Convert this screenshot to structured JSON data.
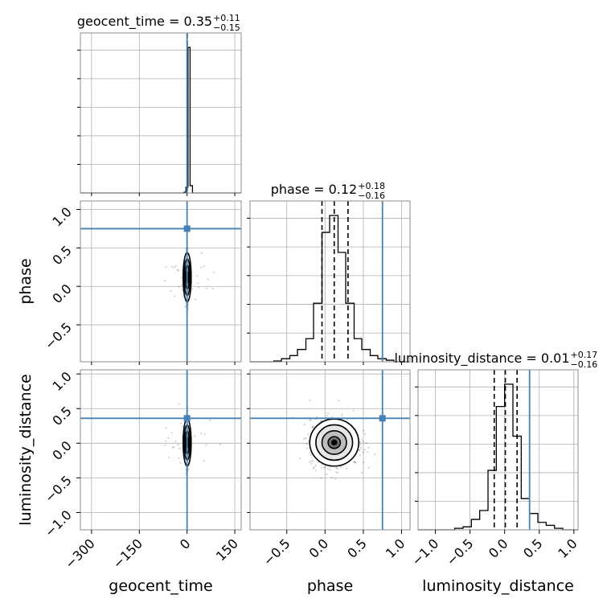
{
  "chart_data": {
    "type": "corner",
    "parameters": [
      "geocent_time",
      "phase",
      "luminosity_distance"
    ],
    "axis_labels": [
      "geocent_time",
      "phase",
      "luminosity_distance"
    ],
    "truth_color": "#4682b4",
    "truths": {
      "geocent_time": 0,
      "phase": 0.75,
      "luminosity_distance": 0.36
    },
    "ranges": {
      "geocent_time": [
        -335,
        170
      ],
      "phase": [
        -0.98,
        1.11
      ],
      "luminosity_distance": [
        -1.25,
        1.06
      ]
    },
    "ticks": {
      "geocent_time": [
        -300,
        -150,
        0,
        150
      ],
      "phase": [
        -0.5,
        0.0,
        0.5,
        1.0
      ],
      "luminosity_distance": [
        -1.0,
        -0.5,
        0.0,
        0.5,
        1.0
      ]
    },
    "tick_labels": {
      "geocent_time": [
        "−300",
        "−150",
        "0",
        "150"
      ],
      "phase": [
        "−0.5",
        "0.0",
        "0.5",
        "1.0"
      ],
      "luminosity_distance": [
        "−1.0",
        "−0.5",
        "0.0",
        "0.5",
        "1.0"
      ]
    },
    "titles": [
      {
        "param": "geocent_time",
        "base": "geocent_time = 0.35",
        "plus": "+0.11",
        "minus": "−0.15"
      },
      {
        "param": "phase",
        "base": "phase = 0.12",
        "plus": "+0.18",
        "minus": "−0.16"
      },
      {
        "param": "luminosity_distance",
        "base": "luminosity_distance = 0.01",
        "plus": "+0.17",
        "minus": "−0.16"
      }
    ],
    "quantiles": {
      "geocent_time": [
        0.2,
        0.35,
        0.46
      ],
      "phase": [
        -0.04,
        0.12,
        0.3
      ],
      "luminosity_distance": [
        -0.15,
        0.01,
        0.18
      ]
    },
    "histograms": {
      "geocent_time": {
        "edges": [
          -335,
          -10,
          -3.5,
          3,
          9.5,
          17,
          170
        ],
        "counts": [
          0,
          0.005,
          0.04,
          1.0,
          0.05,
          0.0
        ]
      },
      "phase": {
        "edges": [
          -0.98,
          -0.67,
          -0.57,
          -0.46,
          -0.36,
          -0.25,
          -0.15,
          -0.04,
          0.06,
          0.17,
          0.27,
          0.38,
          0.48,
          0.59,
          0.69,
          0.8,
          0.9,
          1.11
        ],
        "counts": [
          0,
          0.005,
          0.02,
          0.04,
          0.08,
          0.15,
          0.38,
          0.84,
          0.95,
          0.71,
          0.38,
          0.15,
          0.08,
          0.04,
          0.02,
          0.01,
          0
        ]
      },
      "luminosity_distance": {
        "edges": [
          -1.25,
          -0.72,
          -0.6,
          -0.48,
          -0.36,
          -0.24,
          -0.12,
          0.0,
          0.12,
          0.24,
          0.36,
          0.48,
          0.6,
          0.72,
          0.84,
          1.06
        ],
        "counts": [
          0,
          0.01,
          0.02,
          0.07,
          0.13,
          0.4,
          0.83,
          0.98,
          0.63,
          0.21,
          0.11,
          0.05,
          0.03,
          0.01,
          0
        ]
      }
    },
    "posterior_center": {
      "geocent_time": 0.35,
      "phase": 0.12,
      "luminosity_distance": 0.01
    },
    "posterior_sigma": {
      "geocent_time": 1.5,
      "phase": 0.16,
      "luminosity_distance": 0.17
    },
    "grid": true
  }
}
